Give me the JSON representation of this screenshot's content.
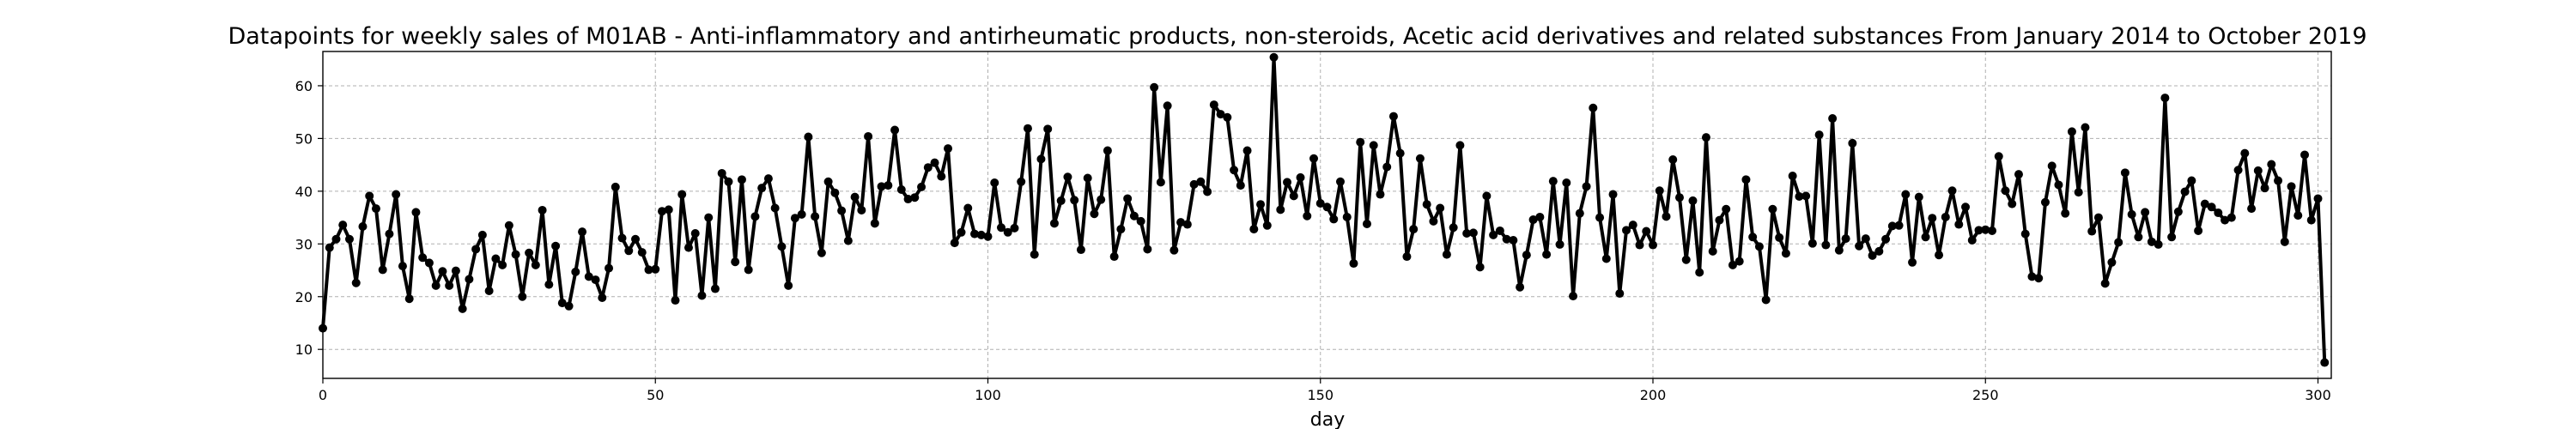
{
  "chart_data": {
    "type": "line",
    "title": "Datapoints for weekly sales of M01AB - Anti-inflammatory and antirheumatic products, non-steroids, Acetic acid derivatives and related substances From January 2014 to October 2019",
    "xlabel": "day",
    "ylabel": "",
    "xlim": [
      0,
      302
    ],
    "ylim": [
      4.5,
      66.5
    ],
    "xticks": [
      0,
      50,
      100,
      150,
      200,
      250,
      300
    ],
    "yticks": [
      10,
      20,
      30,
      40,
      50,
      60
    ],
    "grid": true,
    "marker": "circle",
    "color": "#000000",
    "series": [
      {
        "values": [
          14.0,
          29.3,
          30.9,
          33.6,
          30.9,
          22.6,
          33.3,
          39.1,
          36.7,
          25.1,
          31.9,
          39.4,
          25.8,
          19.6,
          36.0,
          27.4,
          26.4,
          22.1,
          24.8,
          22.1,
          24.9,
          17.7,
          23.3,
          29.0,
          31.7,
          21.1,
          27.2,
          26.0,
          33.5,
          28.0,
          20.0,
          28.3,
          26.0,
          36.4,
          22.3,
          29.6,
          18.8,
          18.2,
          24.7,
          32.3,
          23.8,
          23.2,
          19.8,
          25.4,
          40.8,
          31.1,
          28.7,
          30.9,
          28.4,
          25.1,
          25.2,
          36.2,
          36.5,
          19.3,
          39.4,
          29.3,
          32.0,
          20.2,
          35.0,
          21.5,
          43.4,
          41.8,
          26.6,
          42.2,
          25.1,
          35.2,
          40.6,
          42.4,
          36.8,
          29.5,
          22.1,
          34.9,
          35.6,
          50.3,
          35.2,
          28.3,
          41.8,
          39.7,
          36.3,
          30.6,
          38.9,
          36.4,
          50.4,
          33.9,
          40.9,
          41.1,
          51.6,
          40.3,
          38.5,
          38.8,
          40.8,
          44.5,
          45.4,
          42.8,
          48.1,
          30.2,
          32.2,
          36.8,
          31.9,
          31.7,
          31.4,
          41.6,
          33.1,
          32.2,
          33.0,
          41.8,
          51.9,
          28.0,
          46.1,
          51.8,
          33.9,
          38.2,
          42.7,
          38.3,
          28.9,
          42.5,
          35.7,
          38.4,
          47.7,
          27.6,
          32.8,
          38.6,
          35.3,
          34.3,
          29.0,
          59.7,
          41.7,
          56.2,
          28.8,
          34.1,
          33.7,
          41.3,
          41.8,
          39.9,
          56.4,
          54.6,
          54.0,
          44.0,
          41.1,
          47.7,
          32.8,
          37.5,
          33.5,
          65.4,
          36.5,
          41.7,
          39.1,
          42.6,
          35.3,
          46.2,
          37.7,
          37.0,
          34.7,
          41.8,
          35.1,
          26.3,
          49.3,
          33.8,
          48.7,
          39.4,
          44.6,
          54.2,
          47.2,
          27.6,
          32.8,
          46.2,
          37.5,
          34.3,
          36.8,
          28.0,
          33.1,
          48.7,
          32.0,
          32.1,
          25.6,
          39.1,
          31.7,
          32.5,
          30.9,
          30.7,
          21.8,
          27.9,
          34.6,
          35.1,
          28.0,
          41.9,
          29.9,
          41.6,
          20.1,
          35.8,
          40.9,
          55.8,
          35.0,
          27.2,
          39.4,
          20.6,
          32.6,
          33.6,
          29.8,
          32.4,
          29.8,
          40.1,
          35.2,
          46.0,
          38.8,
          27.0,
          38.2,
          24.6,
          50.2,
          28.6,
          34.5,
          36.6,
          26.0,
          26.7,
          42.2,
          31.3,
          29.5,
          19.4,
          36.6,
          31.2,
          28.2,
          42.9,
          39.0,
          39.1,
          30.1,
          50.7,
          29.8,
          53.8,
          28.8,
          31.0,
          49.1,
          29.6,
          31.0,
          27.8,
          28.6,
          30.9,
          33.4,
          33.5,
          39.4,
          26.5,
          38.9,
          31.3,
          34.9,
          27.9,
          35.1,
          40.1,
          33.7,
          37.0,
          30.7,
          32.6,
          32.7,
          32.5,
          46.6,
          40.1,
          37.6,
          43.2,
          31.9,
          23.8,
          23.5,
          37.9,
          44.8,
          41.2,
          35.8,
          51.3,
          39.8,
          52.1,
          32.4,
          35.0,
          22.5,
          26.5,
          30.3,
          43.5,
          35.6,
          31.3,
          36.0,
          30.4,
          29.9,
          57.7,
          31.3,
          36.1,
          39.9,
          42.0,
          32.5,
          37.6,
          37.0,
          35.9,
          34.5,
          35.0,
          44.0,
          47.2,
          36.7,
          43.9,
          40.6,
          45.1,
          42.0,
          30.4,
          40.9,
          35.4,
          46.9,
          34.5,
          38.6,
          7.5
        ]
      }
    ]
  }
}
